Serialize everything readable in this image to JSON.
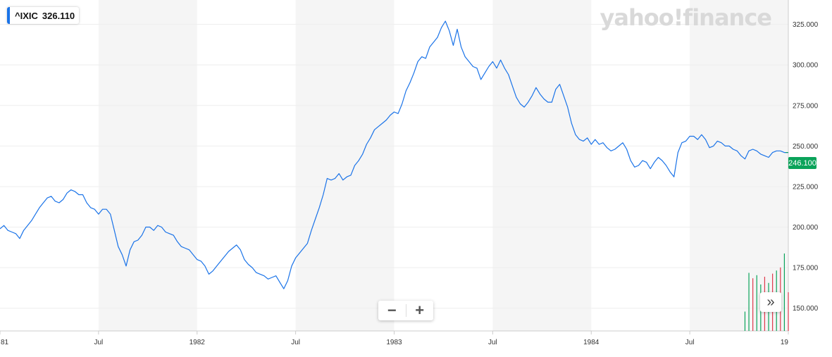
{
  "ticker": {
    "symbol": "^IXIC",
    "value": "326.110"
  },
  "brand": {
    "text": "yahoo!finance"
  },
  "current_price": "246.100",
  "controls": {
    "zoom_out": "−",
    "zoom_in": "+",
    "scroll_right": "»"
  },
  "colors": {
    "line": "#1a73e8",
    "band": "#f5f5f5",
    "grid": "#eeeeee",
    "price_tag": "#0aa35a",
    "vol_up": "#0aa35a",
    "vol_down": "#e0394c"
  },
  "chart_data": {
    "type": "line",
    "title": "",
    "xlabel": "",
    "ylabel": "",
    "x_ticks": [
      "81",
      "Jul",
      "1982",
      "Jul",
      "1983",
      "Jul",
      "1984",
      "Jul",
      "19"
    ],
    "x_tick_positions": [
      1981.0,
      1981.5,
      1982.0,
      1982.5,
      1983.0,
      1983.5,
      1984.0,
      1984.5,
      1985.0
    ],
    "y_ticks": [
      "150.000",
      "175.000",
      "200.000",
      "225.000",
      "250.000",
      "275.000",
      "300.000",
      "325.000"
    ],
    "xlim": [
      1981.0,
      1985.0
    ],
    "ylim": [
      136,
      340
    ],
    "grid": true,
    "series": [
      {
        "x": [
          1981.0,
          1981.02,
          1981.04,
          1981.06,
          1981.08,
          1981.1,
          1981.12,
          1981.14,
          1981.16,
          1981.18,
          1981.2,
          1981.22,
          1981.24,
          1981.26,
          1981.28,
          1981.3,
          1981.32,
          1981.34,
          1981.36,
          1981.38,
          1981.4,
          1981.42,
          1981.44,
          1981.46,
          1981.48,
          1981.5,
          1981.52,
          1981.54,
          1981.56,
          1981.58,
          1981.6,
          1981.62,
          1981.64,
          1981.66,
          1981.68,
          1981.7,
          1981.72,
          1981.74,
          1981.76,
          1981.78,
          1981.8,
          1981.82,
          1981.84,
          1981.86,
          1981.88,
          1981.9,
          1981.92,
          1981.94,
          1981.96,
          1981.98,
          1982.0,
          1982.02,
          1982.04,
          1982.06,
          1982.08,
          1982.1,
          1982.12,
          1982.14,
          1982.16,
          1982.18,
          1982.2,
          1982.22,
          1982.24,
          1982.26,
          1982.28,
          1982.3,
          1982.32,
          1982.34,
          1982.36,
          1982.38,
          1982.4,
          1982.42,
          1982.44,
          1982.46,
          1982.48,
          1982.5,
          1982.52,
          1982.54,
          1982.56,
          1982.58,
          1982.6,
          1982.62,
          1982.64,
          1982.66,
          1982.68,
          1982.7,
          1982.72,
          1982.74,
          1982.76,
          1982.78,
          1982.8,
          1982.82,
          1982.84,
          1982.86,
          1982.88,
          1982.9,
          1982.92,
          1982.94,
          1982.96,
          1982.98,
          1983.0,
          1983.02,
          1983.04,
          1983.06,
          1983.08,
          1983.1,
          1983.12,
          1983.14,
          1983.16,
          1983.18,
          1983.2,
          1983.22,
          1983.24,
          1983.26,
          1983.28,
          1983.3,
          1983.32,
          1983.34,
          1983.36,
          1983.38,
          1983.4,
          1983.42,
          1983.44,
          1983.46,
          1983.48,
          1983.5,
          1983.52,
          1983.54,
          1983.56,
          1983.58,
          1983.6,
          1983.62,
          1983.64,
          1983.66,
          1983.68,
          1983.7,
          1983.72,
          1983.74,
          1983.76,
          1983.78,
          1983.8,
          1983.82,
          1983.84,
          1983.86,
          1983.88,
          1983.9,
          1983.92,
          1983.94,
          1983.96,
          1983.98,
          1984.0,
          1984.02,
          1984.04,
          1984.06,
          1984.08,
          1984.1,
          1984.12,
          1984.14,
          1984.16,
          1984.18,
          1984.2,
          1984.22,
          1984.24,
          1984.26,
          1984.28,
          1984.3,
          1984.32,
          1984.34,
          1984.36,
          1984.38,
          1984.4,
          1984.42,
          1984.44,
          1984.46,
          1984.48,
          1984.5,
          1984.52,
          1984.54,
          1984.56,
          1984.58,
          1984.6,
          1984.62,
          1984.64,
          1984.66,
          1984.68,
          1984.7,
          1984.72,
          1984.74,
          1984.76,
          1984.78,
          1984.8,
          1984.82,
          1984.84,
          1984.86,
          1984.88,
          1984.9,
          1984.92,
          1984.94,
          1984.96,
          1984.98,
          1985.0
        ],
        "values": [
          199,
          201,
          198,
          197,
          196,
          193,
          198,
          201,
          204,
          208,
          212,
          215,
          218,
          219,
          216,
          215,
          217,
          221,
          223,
          222,
          220,
          220,
          215,
          212,
          211,
          208,
          211,
          211,
          208,
          198,
          188,
          183,
          176,
          186,
          191,
          192,
          195,
          200,
          200,
          198,
          201,
          200,
          197,
          196,
          195,
          191,
          188,
          187,
          186,
          183,
          180,
          179,
          176,
          171,
          173,
          176,
          179,
          182,
          185,
          187,
          189,
          186,
          180,
          177,
          175,
          172,
          171,
          170,
          168,
          169,
          170,
          166,
          162,
          167,
          176,
          181,
          184,
          187,
          190,
          198,
          205,
          212,
          220,
          230,
          229,
          230,
          233,
          229,
          231,
          232,
          238,
          241,
          245,
          251,
          255,
          260,
          262,
          264,
          266,
          269,
          271,
          270,
          276,
          284,
          289,
          295,
          302,
          305,
          304,
          311,
          314,
          317,
          323,
          327,
          321,
          312,
          322,
          311,
          305,
          302,
          299,
          298,
          291,
          295,
          299,
          302,
          298,
          303,
          298,
          294,
          287,
          280,
          276,
          274,
          277,
          281,
          286,
          282,
          279,
          277,
          277,
          285,
          288,
          281,
          274,
          264,
          257,
          254,
          253,
          255,
          251,
          254,
          251,
          252,
          249,
          247,
          248,
          250,
          252,
          248,
          241,
          237,
          238,
          241,
          240,
          236,
          240,
          243,
          241,
          238,
          234,
          231,
          246,
          252,
          253,
          256,
          256,
          254,
          257,
          254,
          249,
          250,
          253,
          252,
          250,
          250,
          248,
          247,
          244,
          242,
          247,
          248,
          247,
          245,
          244,
          243,
          246,
          247,
          247,
          246,
          246
        ]
      }
    ],
    "volume": [
      {
        "x": 1984.78,
        "v": 0.25,
        "dir": "up"
      },
      {
        "x": 1984.8,
        "v": 0.75,
        "dir": "up"
      },
      {
        "x": 1984.82,
        "v": 0.68,
        "dir": "down"
      },
      {
        "x": 1984.84,
        "v": 0.72,
        "dir": "up"
      },
      {
        "x": 1984.86,
        "v": 0.6,
        "dir": "up"
      },
      {
        "x": 1984.88,
        "v": 0.7,
        "dir": "down"
      },
      {
        "x": 1984.9,
        "v": 0.62,
        "dir": "up"
      },
      {
        "x": 1984.92,
        "v": 0.74,
        "dir": "down"
      },
      {
        "x": 1984.94,
        "v": 0.78,
        "dir": "up"
      },
      {
        "x": 1984.96,
        "v": 0.82,
        "dir": "down"
      },
      {
        "x": 1984.98,
        "v": 1.0,
        "dir": "up"
      },
      {
        "x": 1985.0,
        "v": 0.5,
        "dir": "down"
      }
    ]
  }
}
